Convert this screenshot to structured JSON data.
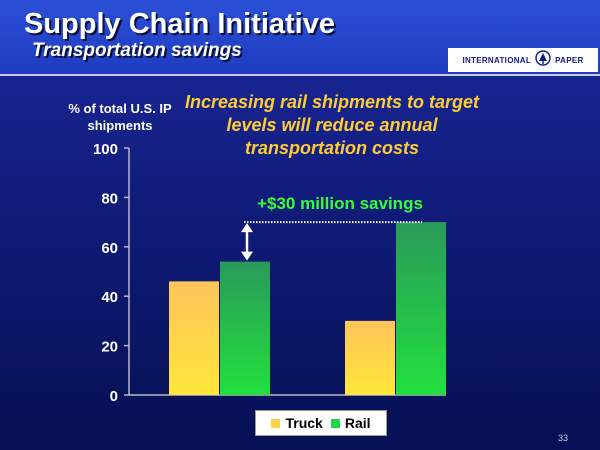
{
  "slide": {
    "title": "Supply Chain Initiative",
    "subtitle": "Transportation savings",
    "headline": "Increasing rail shipments to target levels will reduce annual transportation costs",
    "page_number": "33"
  },
  "logo": {
    "left_text": "INTERNATIONAL",
    "right_text": "PAPER",
    "icon": "international-paper-tree-logo"
  },
  "colors": {
    "truck": "#ffd24d",
    "rail": "#22d44a",
    "annotation_text": "#33ff33",
    "axis_text": "#ffffff",
    "background": "#0c1a80"
  },
  "chart_data": {
    "type": "bar",
    "title": "",
    "xlabel": "",
    "ylabel": "% of total U.S. IP shipments",
    "ylim": [
      0,
      100
    ],
    "yticks": [
      0,
      20,
      40,
      60,
      80,
      100
    ],
    "categories": [
      "",
      ""
    ],
    "series": [
      {
        "name": "Truck",
        "values": [
          46,
          30
        ]
      },
      {
        "name": "Rail",
        "values": [
          54,
          70
        ]
      }
    ],
    "annotation": {
      "text": "+$30 million savings",
      "from_value": 54,
      "to_value": 70,
      "arrow": "double-headed vertical arrow"
    },
    "legend": {
      "position": "bottom-center"
    },
    "grid": false
  }
}
